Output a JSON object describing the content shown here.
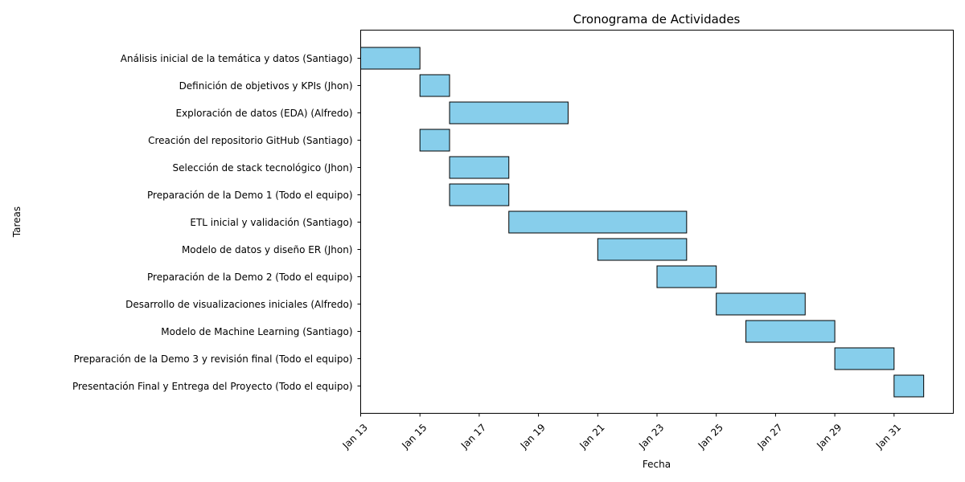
{
  "chart_data": {
    "type": "bar",
    "orientation": "horizontal",
    "title": "Cronograma de Actividades",
    "xlabel": "Fecha",
    "ylabel": "Tareas",
    "grid": false,
    "bar_color": "#87CEEB",
    "bar_edge_color": "#000000",
    "xlim": [
      "2025-01-13",
      "2025-02-02"
    ],
    "x_ticks": [
      {
        "date": "2025-01-13",
        "label": "Jan 13"
      },
      {
        "date": "2025-01-15",
        "label": "Jan 15"
      },
      {
        "date": "2025-01-17",
        "label": "Jan 17"
      },
      {
        "date": "2025-01-19",
        "label": "Jan 19"
      },
      {
        "date": "2025-01-21",
        "label": "Jan 21"
      },
      {
        "date": "2025-01-23",
        "label": "Jan 23"
      },
      {
        "date": "2025-01-25",
        "label": "Jan 25"
      },
      {
        "date": "2025-01-27",
        "label": "Jan 27"
      },
      {
        "date": "2025-01-29",
        "label": "Jan 29"
      },
      {
        "date": "2025-01-31",
        "label": "Jan 31"
      }
    ],
    "tasks": [
      {
        "name": "Análisis inicial de la temática y datos (Santiago)",
        "start": "2025-01-13",
        "end": "2025-01-15"
      },
      {
        "name": "Definición de objetivos y KPIs (Jhon)",
        "start": "2025-01-15",
        "end": "2025-01-16"
      },
      {
        "name": "Exploración de datos (EDA) (Alfredo)",
        "start": "2025-01-16",
        "end": "2025-01-20"
      },
      {
        "name": "Creación del repositorio GitHub (Santiago)",
        "start": "2025-01-15",
        "end": "2025-01-16"
      },
      {
        "name": "Selección de stack tecnológico (Jhon)",
        "start": "2025-01-16",
        "end": "2025-01-18"
      },
      {
        "name": "Preparación de la Demo 1 (Todo el equipo)",
        "start": "2025-01-16",
        "end": "2025-01-18"
      },
      {
        "name": "ETL inicial y validación (Santiago)",
        "start": "2025-01-18",
        "end": "2025-01-24"
      },
      {
        "name": "Modelo de datos y diseño ER (Jhon)",
        "start": "2025-01-21",
        "end": "2025-01-24"
      },
      {
        "name": "Preparación de la Demo 2 (Todo el equipo)",
        "start": "2025-01-23",
        "end": "2025-01-25"
      },
      {
        "name": "Desarrollo de visualizaciones iniciales (Alfredo)",
        "start": "2025-01-25",
        "end": "2025-01-28"
      },
      {
        "name": "Modelo de Machine Learning (Santiago)",
        "start": "2025-01-26",
        "end": "2025-01-29"
      },
      {
        "name": "Preparación de la Demo 3 y revisión final (Todo el equipo)",
        "start": "2025-01-29",
        "end": "2025-01-31"
      },
      {
        "name": "Presentación Final y Entrega del Proyecto (Todo el equipo)",
        "start": "2025-01-31",
        "end": "2025-02-01"
      }
    ]
  }
}
